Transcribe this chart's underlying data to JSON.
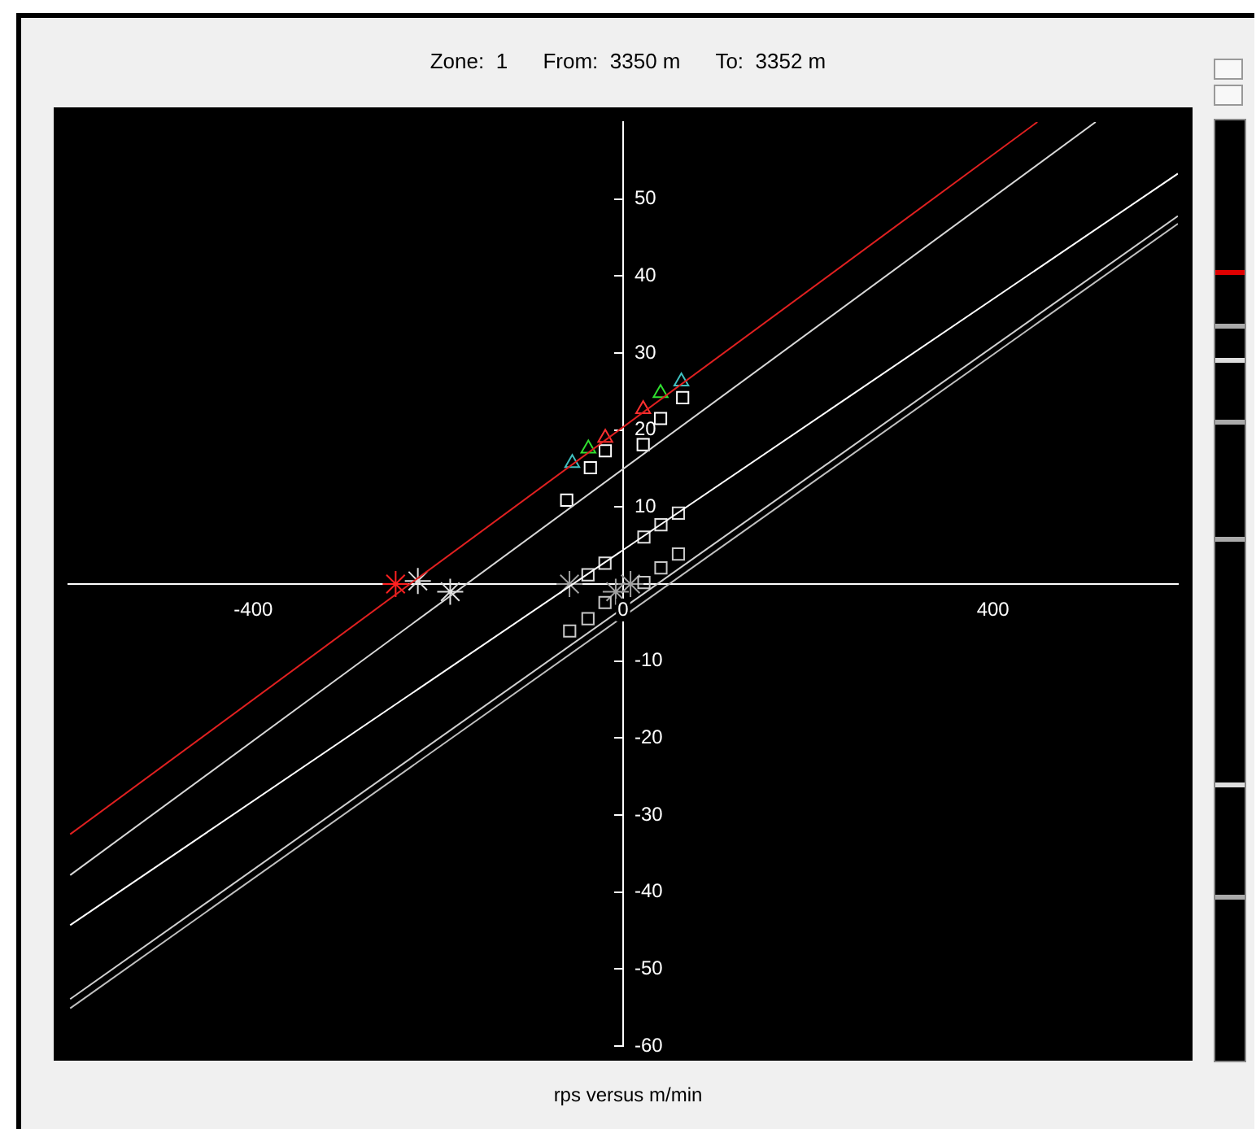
{
  "chart_data": {
    "type": "line",
    "title": "Zone:  1      From:  3350 m      To:  3352 m",
    "xlabel": "rps versus m/min",
    "xlim": [
      -600,
      600
    ],
    "ylim": [
      -60,
      60
    ],
    "xticks": [
      -400,
      0,
      400
    ],
    "yticks": [
      -60,
      -50,
      -40,
      -30,
      -20,
      -10,
      10,
      20,
      30,
      40,
      50
    ],
    "grid": false,
    "legend": false,
    "line_style": "solid",
    "marker": "none",
    "series": [
      {
        "color": "#e02020",
        "x": [
          -598,
          448
        ],
        "values": [
          -32.5,
          60
        ]
      },
      {
        "color": "#d8d8d8",
        "x": [
          -598,
          511
        ],
        "values": [
          -37.8,
          60
        ]
      },
      {
        "color": "#ffffff",
        "x": [
          -598,
          600
        ],
        "values": [
          -44.3,
          53.3
        ]
      },
      {
        "color": "#d0d0d0",
        "x": [
          -598,
          600
        ],
        "values": [
          -53.9,
          47.8
        ]
      },
      {
        "color": "#c0c0c0",
        "x": [
          -598,
          600
        ],
        "values": [
          -55.1,
          46.8
        ]
      },
      {
        "type": "scatter",
        "marker": "triangle",
        "color": "#ff3030",
        "x": [
          -19.3,
          21.7
        ],
        "values": [
          19.0,
          22.7
        ]
      },
      {
        "type": "scatter",
        "marker": "triangle",
        "color": "#30e030",
        "x": [
          -37.6,
          40.5
        ],
        "values": [
          17.6,
          24.8
        ]
      },
      {
        "type": "scatter",
        "marker": "triangle",
        "color": "#40c0c0",
        "x": [
          -55,
          63
        ],
        "values": [
          15.7,
          26.3
        ]
      },
      {
        "type": "scatter",
        "marker": "square",
        "color": "#ffffff",
        "x": [
          -61,
          -35.4,
          -19.3,
          21.7,
          40.5,
          64.4
        ],
        "values": [
          10.9,
          15.1,
          17.3,
          18.1,
          21.5,
          24.2
        ]
      },
      {
        "type": "scatter",
        "marker": "square",
        "color": "#e0e0e0",
        "x": [
          -38,
          -19.6,
          22.5,
          40.9,
          59.8
        ],
        "values": [
          1.2,
          2.7,
          6.1,
          7.7,
          9.2
        ]
      },
      {
        "type": "scatter",
        "marker": "square",
        "color": "#c8c8c8",
        "x": [
          -57.8,
          -38,
          -19.6,
          22.5,
          40.9,
          59.8
        ],
        "values": [
          -6.1,
          -4.5,
          -2.4,
          0.2,
          2.1,
          3.9
        ]
      },
      {
        "type": "scatter",
        "marker": "cross",
        "color": "#ff2020",
        "x": [
          -246
        ],
        "values": [
          0
        ]
      },
      {
        "type": "scatter",
        "marker": "cross",
        "color": "#e0e0e0",
        "x": [
          -222,
          -187
        ],
        "values": [
          0.4,
          -1
        ]
      },
      {
        "type": "scatter",
        "marker": "cross",
        "color": "#a0a0a0",
        "x": [
          -58,
          -8,
          8
        ],
        "values": [
          0,
          -1,
          0
        ]
      }
    ]
  }
}
